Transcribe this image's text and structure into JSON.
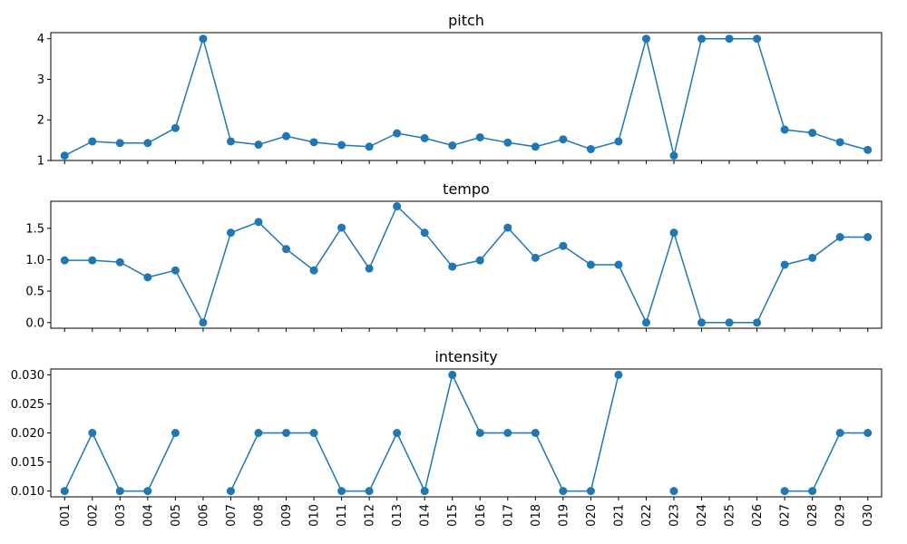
{
  "chart_data": {
    "type": "line",
    "categories": [
      "001",
      "002",
      "003",
      "004",
      "005",
      "006",
      "007",
      "008",
      "009",
      "010",
      "011",
      "012",
      "013",
      "014",
      "015",
      "016",
      "017",
      "018",
      "019",
      "020",
      "021",
      "022",
      "023",
      "024",
      "025",
      "026",
      "027",
      "028",
      "029",
      "030"
    ],
    "panels": [
      {
        "title": "pitch",
        "ylim": [
          1,
          4.15
        ],
        "yticks": [
          1,
          2,
          3,
          4
        ],
        "tick_labels": [
          "1",
          "2",
          "3",
          "4"
        ],
        "values": [
          1.12,
          1.47,
          1.43,
          1.43,
          1.8,
          4.0,
          1.47,
          1.39,
          1.6,
          1.45,
          1.38,
          1.34,
          1.67,
          1.55,
          1.37,
          1.57,
          1.44,
          1.34,
          1.52,
          1.28,
          1.47,
          4.0,
          1.12,
          4.0,
          4.0,
          4.0,
          1.76,
          1.68,
          1.45,
          1.26
        ]
      },
      {
        "title": "tempo",
        "ylim": [
          -0.09,
          1.93
        ],
        "yticks": [
          0,
          0.5,
          1.0,
          1.5
        ],
        "tick_labels": [
          "0.0",
          "0.5",
          "1.0",
          "1.5"
        ],
        "values": [
          0.99,
          0.99,
          0.96,
          0.72,
          0.83,
          0.0,
          1.43,
          1.6,
          1.17,
          0.83,
          1.51,
          0.86,
          1.85,
          1.43,
          0.89,
          0.99,
          1.51,
          1.03,
          1.22,
          0.92,
          0.92,
          0.0,
          1.43,
          0.0,
          0.0,
          0.0,
          0.92,
          1.03,
          1.36,
          1.36
        ]
      },
      {
        "title": "intensity",
        "ylim": [
          0.009,
          0.031
        ],
        "yticks": [
          0.01,
          0.015,
          0.02,
          0.025,
          0.03
        ],
        "tick_labels": [
          "0.010",
          "0.015",
          "0.020",
          "0.025",
          "0.030"
        ],
        "values": [
          0.01,
          0.02,
          0.01,
          0.01,
          0.02,
          null,
          0.01,
          0.02,
          0.02,
          0.02,
          0.01,
          0.01,
          0.02,
          0.01,
          0.03,
          0.02,
          0.02,
          0.02,
          0.01,
          0.01,
          0.03,
          null,
          0.01,
          null,
          null,
          null,
          0.01,
          0.01,
          0.02,
          0.02
        ]
      }
    ],
    "shared_x": true,
    "x_tick_rotation": 90,
    "grid": false,
    "legend": null,
    "line_color": "#1f77b4",
    "marker": "circle"
  }
}
